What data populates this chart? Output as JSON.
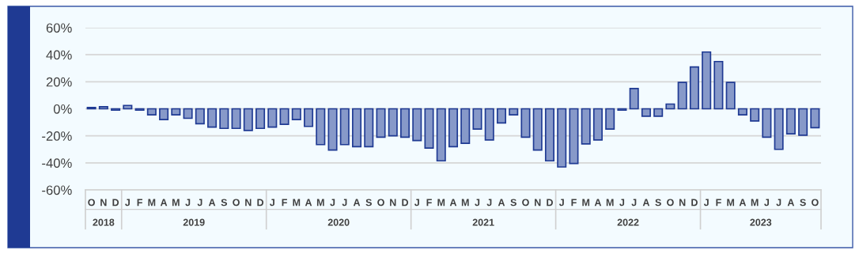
{
  "chart_data": {
    "type": "bar",
    "categories": [
      "O",
      "N",
      "D",
      "J",
      "F",
      "M",
      "A",
      "M",
      "J",
      "J",
      "A",
      "S",
      "O",
      "N",
      "D",
      "J",
      "F",
      "M",
      "A",
      "M",
      "J",
      "J",
      "A",
      "S",
      "O",
      "N",
      "D",
      "J",
      "F",
      "M",
      "A",
      "M",
      "J",
      "J",
      "A",
      "S",
      "O",
      "N",
      "D",
      "J",
      "F",
      "M",
      "A",
      "M",
      "J",
      "J",
      "A",
      "S",
      "O",
      "N",
      "D",
      "J",
      "F",
      "M",
      "A",
      "M",
      "J",
      "J",
      "A",
      "S",
      "O"
    ],
    "values": [
      1,
      1.5,
      -1,
      2.5,
      -1,
      -4.5,
      -8,
      -4.5,
      -7,
      -11,
      -13.5,
      -14.5,
      -14.5,
      -16,
      -14.5,
      -13.5,
      -11.5,
      -8,
      -13,
      -26.5,
      -30.5,
      -26.5,
      -28,
      -28,
      -21,
      -20,
      -21,
      -23.5,
      -29,
      -38.5,
      -28,
      -25.5,
      -15,
      -23,
      -10.5,
      -4.5,
      -21,
      -30.5,
      -38.5,
      -43,
      -40.5,
      -26,
      -23,
      -15,
      -1,
      15,
      -5.5,
      -5.5,
      3.5,
      19.5,
      31,
      42,
      35,
      19.5,
      -4.5,
      -9,
      -21,
      -30,
      -18.5,
      -19.5,
      -14
    ],
    "color": "#8799c9",
    "ylim": [
      -60,
      60
    ],
    "yticks": [
      {
        "value": -60,
        "label": "-60%"
      },
      {
        "value": -40,
        "label": "-40%"
      },
      {
        "value": -20,
        "label": "-20%"
      },
      {
        "value": 0,
        "label": "0%"
      },
      {
        "value": 20,
        "label": "20%"
      },
      {
        "value": 40,
        "label": "40%"
      },
      {
        "value": 60,
        "label": "60%"
      }
    ],
    "annotations": [
      "2018",
      "2019",
      "2020",
      "2021",
      "2022",
      "2023"
    ],
    "grid": "y"
  }
}
